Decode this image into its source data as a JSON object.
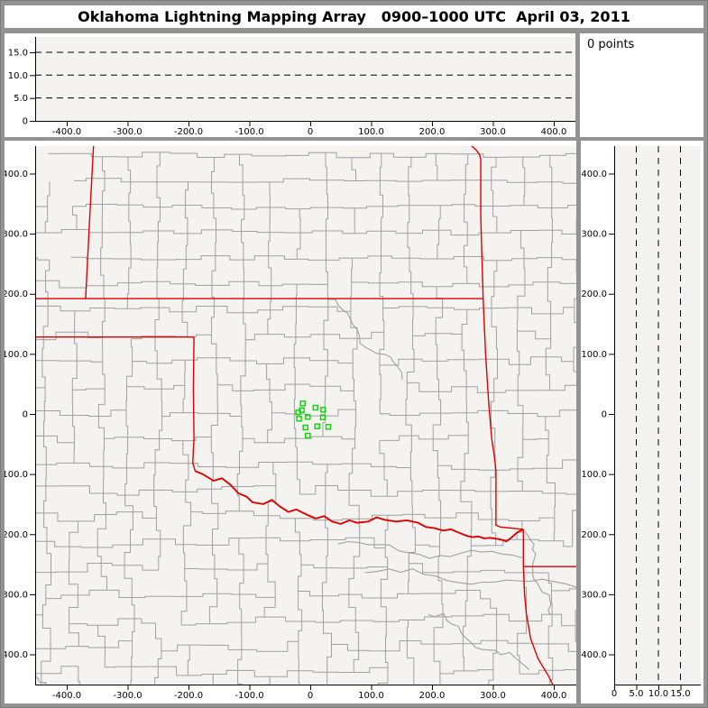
{
  "title": "Oklahoma Lightning Mapping Array   0900–1000 UTC  April 03, 2011",
  "points_panel": {
    "label": "0 points"
  },
  "colors": {
    "chrome": "#929292",
    "panel": "#ffffff",
    "plot_bg": "#f4f3f0",
    "axis": "#000000",
    "county": "#a0a0a0",
    "river": "#a0a0a0",
    "state_border": "#dd0000",
    "station": "#00d800"
  },
  "axes": {
    "x_km": {
      "ticks": [
        {
          "v": -400,
          "t": "-400.0"
        },
        {
          "v": -300,
          "t": "-300.0"
        },
        {
          "v": -200,
          "t": "-200.0"
        },
        {
          "v": -100,
          "t": "-100.0"
        },
        {
          "v": 0,
          "t": "0"
        },
        {
          "v": 100,
          "t": "100.0"
        },
        {
          "v": 200,
          "t": "200.0"
        },
        {
          "v": 300,
          "t": "300.0"
        },
        {
          "v": 400,
          "t": "400.0"
        }
      ]
    },
    "y_km": {
      "ticks": [
        {
          "v": 400,
          "t": "400.0"
        },
        {
          "v": 300,
          "t": "300.0"
        },
        {
          "v": 200,
          "t": "200.0"
        },
        {
          "v": 100,
          "t": "100.0"
        },
        {
          "v": 0,
          "t": "0"
        },
        {
          "v": -100,
          "t": "-100.0"
        },
        {
          "v": -200,
          "t": "-200.0"
        },
        {
          "v": -300,
          "t": "-300.0"
        },
        {
          "v": -400,
          "t": "-400.0"
        }
      ]
    },
    "alt_km": {
      "ticks": [
        {
          "v": 0,
          "t": "0"
        },
        {
          "v": 5,
          "t": "5.0"
        },
        {
          "v": 10,
          "t": "10.0"
        },
        {
          "v": 15,
          "t": "15.0"
        }
      ],
      "dashed": [
        5,
        10,
        15
      ]
    }
  },
  "map": {
    "stations_km": [
      [
        -12.3,
        17.6
      ],
      [
        8.5,
        10.5
      ],
      [
        21.2,
        7.1
      ],
      [
        -13.8,
        6.5
      ],
      [
        -19.8,
        2.6
      ],
      [
        -4.0,
        -5.0
      ],
      [
        -18.3,
        -8.0
      ],
      [
        20.8,
        -5.6
      ],
      [
        -7.9,
        -22.5
      ],
      [
        11.4,
        -20.6
      ],
      [
        29.7,
        -21.5
      ],
      [
        -4.0,
        -36.0
      ]
    ],
    "state_borders": [
      {
        "name": "colorado-kansas-border",
        "pts": [
          [
            -356,
            446
          ],
          [
            -362,
            330
          ],
          [
            -369,
            192
          ]
        ]
      },
      {
        "name": "kansas-oklahoma-border",
        "pts": [
          [
            -452,
            192
          ],
          [
            284,
            192
          ]
        ]
      },
      {
        "name": "texas-panhandle-north-border",
        "pts": [
          [
            -452,
            128
          ],
          [
            -191,
            128
          ]
        ]
      },
      {
        "name": "texas-oklahoma-100w-border",
        "pts": [
          [
            -191,
            128
          ],
          [
            -192,
            40
          ],
          [
            -191,
            -40
          ],
          [
            -193,
            -81
          ],
          [
            -189,
            -95
          ]
        ]
      },
      {
        "name": "oklahoma-east-border",
        "pts": [
          [
            265,
            446
          ],
          [
            272,
            440
          ],
          [
            278,
            432
          ],
          [
            280,
            424
          ],
          [
            280,
            330
          ],
          [
            284,
            192
          ],
          [
            288,
            100
          ],
          [
            293,
            20
          ],
          [
            298,
            -40
          ],
          [
            303,
            -75
          ],
          [
            305,
            -95
          ],
          [
            305,
            -185
          ],
          [
            312,
            -188
          ],
          [
            330,
            -190
          ],
          [
            350,
            -192
          ]
        ]
      },
      {
        "name": "arkansas-texas-border",
        "pts": [
          [
            350,
            -192
          ],
          [
            350,
            -254
          ]
        ]
      },
      {
        "name": "arkansas-louisiana-border",
        "pts": [
          [
            350,
            -254
          ],
          [
            437,
            -254
          ]
        ]
      },
      {
        "name": "texas-louisiana-sabine-border",
        "pts": [
          [
            350,
            -254
          ],
          [
            352,
            -300
          ],
          [
            355,
            -332
          ],
          [
            362,
            -374
          ],
          [
            374,
            -407
          ],
          [
            392,
            -437
          ],
          [
            399,
            -452
          ]
        ]
      }
    ],
    "red_river_border": [
      [
        -189,
        -95
      ],
      [
        -177,
        -100
      ],
      [
        -159,
        -111
      ],
      [
        -145,
        -107
      ],
      [
        -131,
        -118
      ],
      [
        -118,
        -132
      ],
      [
        -104,
        -138
      ],
      [
        -95,
        -147
      ],
      [
        -77,
        -150
      ],
      [
        -63,
        -143
      ],
      [
        -50,
        -154
      ],
      [
        -36,
        -163
      ],
      [
        -23,
        -159
      ],
      [
        -5,
        -168
      ],
      [
        9,
        -174
      ],
      [
        23,
        -170
      ],
      [
        36,
        -179
      ],
      [
        50,
        -183
      ],
      [
        64,
        -177
      ],
      [
        77,
        -181
      ],
      [
        95,
        -179
      ],
      [
        109,
        -172
      ],
      [
        122,
        -176
      ],
      [
        141,
        -179
      ],
      [
        159,
        -177
      ],
      [
        177,
        -181
      ],
      [
        190,
        -188
      ],
      [
        204,
        -190
      ],
      [
        218,
        -194
      ],
      [
        231,
        -192
      ],
      [
        245,
        -198
      ],
      [
        258,
        -203
      ],
      [
        267,
        -205
      ],
      [
        276,
        -204
      ],
      [
        286,
        -207
      ],
      [
        295,
        -206
      ],
      [
        308,
        -208
      ],
      [
        317,
        -210
      ],
      [
        322,
        -212
      ],
      [
        330,
        -206
      ],
      [
        340,
        -197
      ],
      [
        350,
        -192
      ]
    ],
    "rivers": [
      {
        "from": [
          -452,
          -438
        ],
        "to": [
          -434,
          -451
        ],
        "amp": 2
      },
      {
        "from": [
          28,
          192
        ],
        "to": [
          152,
          58
        ],
        "amp": 9
      },
      {
        "from": [
          45,
          -218
        ],
        "to": [
          348,
          -242
        ],
        "amp": 8
      },
      {
        "from": [
          90,
          -262
        ],
        "to": [
          438,
          -288
        ],
        "amp": 8
      },
      {
        "from": [
          195,
          -332
        ],
        "to": [
          358,
          -428
        ],
        "amp": 8
      },
      {
        "from": [
          352,
          -196
        ],
        "to": [
          392,
          -335
        ],
        "amp": 7
      }
    ]
  },
  "chart_data": {
    "type": "scatter",
    "title": "Oklahoma Lightning Mapping Array 0900–1000 UTC April 03, 2011",
    "lightning_points_count": 0,
    "lightning_points": [],
    "panels": {
      "top_altitude_panel": {
        "xlabel_km_east_west": [
          -400,
          -300,
          -200,
          -100,
          0,
          100,
          200,
          300,
          400
        ],
        "alt_ticks_km": [
          0,
          5,
          10,
          15
        ],
        "alt_range": [
          0,
          18
        ],
        "grid": "dashed at 5,10,15"
      },
      "plan_view_map": {
        "x_range_km": [
          -452,
          437
        ],
        "y_range_km": [
          -450,
          446
        ],
        "lma_station_markers_km": [
          [
            -12.3,
            17.6
          ],
          [
            8.5,
            10.5
          ],
          [
            21.2,
            7.1
          ],
          [
            -13.8,
            6.5
          ],
          [
            -19.8,
            2.6
          ],
          [
            -4.0,
            -5.0
          ],
          [
            -18.3,
            -8.0
          ],
          [
            20.8,
            -5.6
          ],
          [
            -7.9,
            -22.5
          ],
          [
            11.4,
            -20.6
          ],
          [
            29.7,
            -21.5
          ],
          [
            -4.0,
            -36.0
          ]
        ]
      },
      "right_altitude_panel": {
        "alt_ticks_km": [
          0,
          5,
          10,
          15
        ],
        "ylabel_km_north_south": [
          -400,
          -300,
          -200,
          -100,
          0,
          100,
          200,
          300,
          400
        ],
        "grid": "dashed at 5,10,15"
      }
    }
  }
}
